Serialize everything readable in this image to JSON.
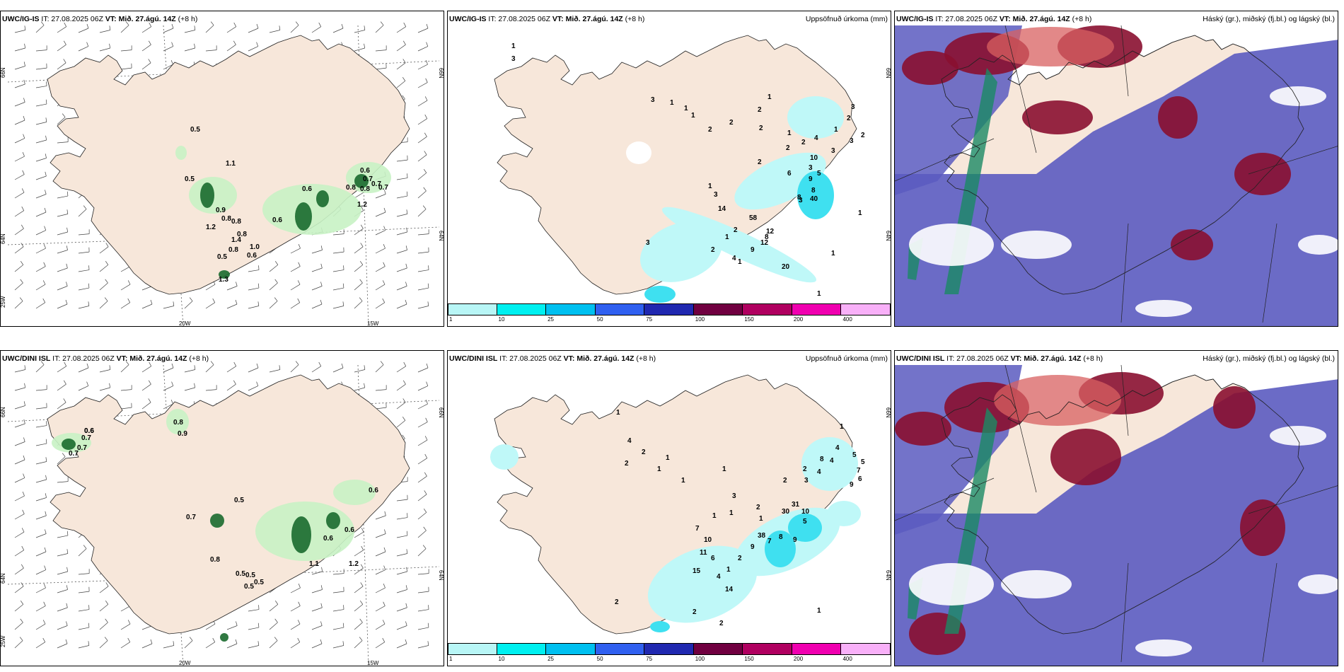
{
  "panels": [
    {
      "model": "UWC/IG-IS",
      "it": "IT: 27.08.2025 06Z",
      "vt_label": "VT:",
      "vt_value": "Mið. 27.ágú. 14Z",
      "lead": "(+8 h)",
      "right_title": "",
      "lat_ticks": [
        "66N",
        "64N",
        "25W"
      ],
      "lon_ticks": [
        "20W",
        "15W"
      ],
      "lat_ticks_right": [
        "66N",
        "64N"
      ],
      "values": [
        "0.5",
        "1.1",
        "0.5",
        "0.9",
        "0.8",
        "0.8",
        "1.2",
        "0.8",
        "1.4",
        "1.0",
        "0.8",
        "0.5",
        "0.6",
        "1.3",
        "0.6",
        "0.6",
        "0.6",
        "0.7",
        "0.8",
        "0.8",
        "0.7",
        "1.2",
        "0.7"
      ]
    },
    {
      "model": "UWC/IG-IS",
      "it": "IT: 27.08.2025 06Z",
      "vt_label": "VT:",
      "vt_value": "Mið. 27.ágú. 14Z",
      "lead": "(+8 h)",
      "right_title": "Uppsöfnuð úrkoma (mm)",
      "lat_ticks_right": [
        "66N",
        "64N"
      ],
      "values": [
        "1",
        "3",
        "3",
        "1",
        "1",
        "1",
        "2",
        "2",
        "2",
        "1",
        "2",
        "1",
        "3",
        "2",
        "1",
        "2",
        "3",
        "3",
        "2",
        "2",
        "4",
        "2",
        "10",
        "3",
        "6",
        "9",
        "8",
        "5",
        "3",
        "40",
        "8",
        "14",
        "58",
        "3",
        "1",
        "12",
        "8",
        "12",
        "9",
        "1",
        "2",
        "1",
        "2",
        "4",
        "20",
        "1",
        "1",
        "1",
        "3"
      ]
    },
    {
      "model": "UWC/IG-IS",
      "it": "IT: 27.08.2025 06Z",
      "vt_label": "VT:",
      "vt_value": "Mið. 27.ágú. 14Z",
      "lead": "(+8 h)",
      "right_title": "Háský (gr.), miðský (fj.bl.) og lágský (bl.)"
    },
    {
      "model": "UWC/DINI ISL",
      "it": "IT: 27.08.2025 06Z",
      "vt_label": "VT:",
      "vt_value": "Mið. 27.ágú. 14Z",
      "lead": "(+8 h)",
      "right_title": "",
      "lat_ticks": [
        "66N",
        "64N",
        "25W"
      ],
      "lon_ticks": [
        "20W",
        "15W"
      ],
      "lat_ticks_right": [
        "66N",
        "64N"
      ],
      "values": [
        "0.6",
        "0.7",
        "0.7",
        "0.7",
        "0.8",
        "0.9",
        "0.5",
        "0.7",
        "0.5",
        "0.8",
        "0.5",
        "0.5",
        "0.5",
        "0.6",
        "0.6",
        "1.2",
        "1.1",
        "0.6",
        "0.6"
      ]
    },
    {
      "model": "UWC/DINI ISL",
      "it": "IT: 27.08.2025 06Z",
      "vt_label": "VT:",
      "vt_value": "Mið. 27.ágú. 14Z",
      "lead": "(+8 h)",
      "right_title": "Uppsöfnuð úrkoma (mm)",
      "lat_ticks_right": [
        "66N",
        "64N"
      ],
      "values": [
        "4",
        "1",
        "2",
        "2",
        "1",
        "1",
        "1",
        "2",
        "1",
        "1",
        "4",
        "5",
        "5",
        "7",
        "6",
        "9",
        "4",
        "8",
        "2",
        "4",
        "3",
        "2",
        "1",
        "3",
        "1",
        "1",
        "7",
        "10",
        "11",
        "6",
        "15",
        "38",
        "31",
        "30",
        "10",
        "5",
        "9",
        "8",
        "7",
        "9",
        "2",
        "1",
        "4",
        "14",
        "2",
        "2",
        "1",
        "2"
      ]
    },
    {
      "model": "UWC/DINI ISL",
      "it": "IT: 27.08.2025 06Z",
      "vt_label": "VT:",
      "vt_value": "Mið. 27.ágú. 14Z",
      "lead": "(+8 h)",
      "right_title": "Háský (gr.), miðský (fj.bl.) og lágský (bl.)"
    }
  ],
  "colorbar": {
    "labels": [
      "1",
      "10",
      "25",
      "50",
      "75",
      "100",
      "150",
      "200",
      "400"
    ],
    "colors": [
      "#b8f6f6",
      "#00f0f0",
      "#00c0f0",
      "#3060f0",
      "#2028b0",
      "#700040",
      "#b00060",
      "#f000b0",
      "#f8b0f8"
    ]
  },
  "colors": {
    "land": "#f7e7da",
    "precip_light": "#bff8f8",
    "wind_green": "#c8f2c4",
    "wind_dark": "#1a6a2e",
    "cloud_high": "#1a8a64",
    "cloud_mid": "#5b5bc0",
    "cloud_low_red": "#8a1030",
    "cloud_low_orange": "#d86060"
  }
}
